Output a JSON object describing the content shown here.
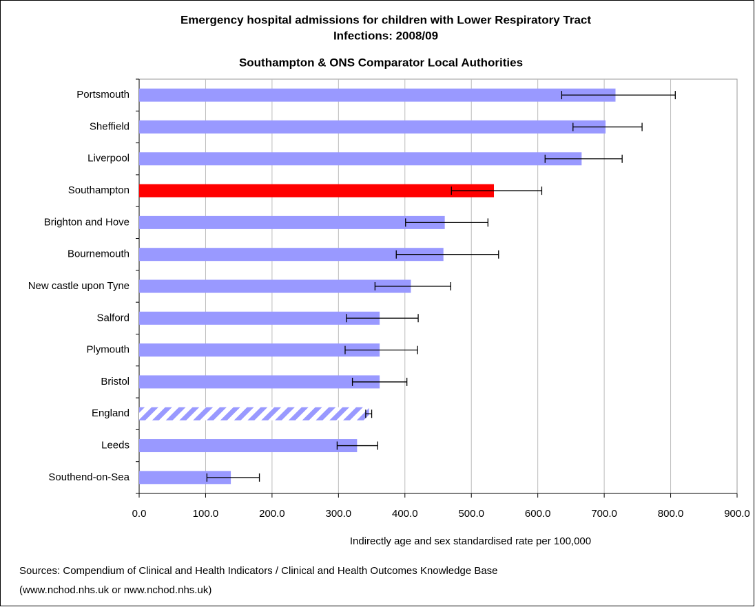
{
  "chart_data": {
    "type": "hbar",
    "title": [
      "Emergency hospital admissions for children with Lower Respiratory Tract",
      "Infections: 2008/09"
    ],
    "subtitle": "Southampton & ONS Comparator Local Authorities",
    "x_label": "Indirectly age and sex standardised rate per 100,000",
    "sources": [
      "Sources: Compendium of Clinical and Health Indicators / Clinical and Health Outcomes Knowledge Base",
      "(www.nchod.nhs.uk or nww.nchod.nhs.uk)"
    ],
    "categories": [
      "Portsmouth",
      "Sheffield",
      "Liverpool",
      "Southampton",
      "Brighton and Hove",
      "Bournemouth",
      "New castle upon Tyne",
      "Salford",
      "Plymouth",
      "Bristol",
      "England",
      "Leeds",
      "Southend-on-Sea"
    ],
    "series": [
      {
        "values": [
          717,
          702,
          666,
          534,
          460,
          458,
          409,
          362,
          362,
          362,
          346,
          328,
          138
        ],
        "ci_low": [
          636,
          653,
          611,
          470,
          401,
          387,
          355,
          312,
          310,
          321,
          341,
          298,
          102
        ],
        "ci_high": [
          807,
          757,
          727,
          606,
          525,
          541,
          469,
          420,
          419,
          403,
          350,
          359,
          181
        ],
        "colors": [
          "#9999ff",
          "#9999ff",
          "#9999ff",
          "#ff0000",
          "#9999ff",
          "#9999ff",
          "#9999ff",
          "#9999ff",
          "#9999ff",
          "#9999ff",
          "#9999ff",
          "#9999ff",
          "#9999ff"
        ],
        "hatched": [
          10
        ]
      }
    ],
    "xlim": [
      0,
      900
    ],
    "xticks": [
      {
        "value": 0,
        "label": "0.0"
      },
      {
        "value": 100,
        "label": "100.0"
      },
      {
        "value": 200,
        "label": "200.0"
      },
      {
        "value": 300,
        "label": "300.0"
      },
      {
        "value": 400,
        "label": "400.0"
      },
      {
        "value": 500,
        "label": "500.0"
      },
      {
        "value": 600,
        "label": "600.0"
      },
      {
        "value": 700,
        "label": "700.0"
      },
      {
        "value": 800,
        "label": "800.0"
      },
      {
        "value": 900,
        "label": "900.0"
      }
    ],
    "grid": true
  }
}
